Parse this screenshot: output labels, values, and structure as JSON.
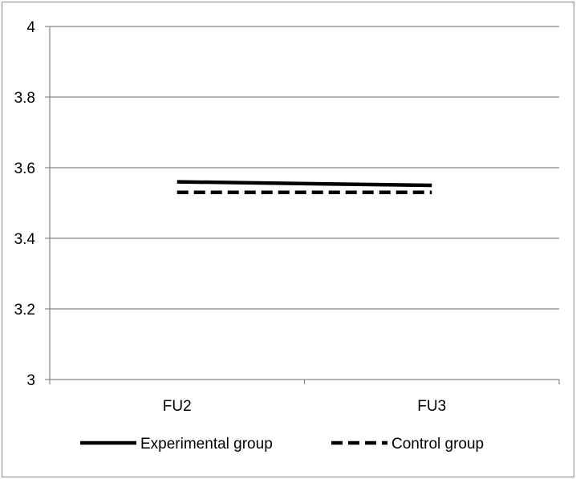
{
  "chart_data": {
    "type": "line",
    "categories": [
      "FU2",
      "FU3"
    ],
    "series": [
      {
        "name": "Experimental group",
        "values": [
          3.56,
          3.55
        ],
        "color": "#000000",
        "style": "solid"
      },
      {
        "name": "Control group",
        "values": [
          3.53,
          3.53
        ],
        "color": "#000000",
        "style": "dashed"
      }
    ],
    "ylim": [
      3,
      4
    ],
    "yticks": [
      3,
      3.2,
      3.4,
      3.6,
      3.8,
      4
    ],
    "ytick_labels": [
      "3",
      "3.2",
      "3.4",
      "3.6",
      "3.8",
      "4"
    ],
    "grid": true,
    "gridline_color": "#868686",
    "axis_color": "#868686",
    "legend_position": "bottom",
    "title": "",
    "xlabel": "",
    "ylabel": ""
  }
}
